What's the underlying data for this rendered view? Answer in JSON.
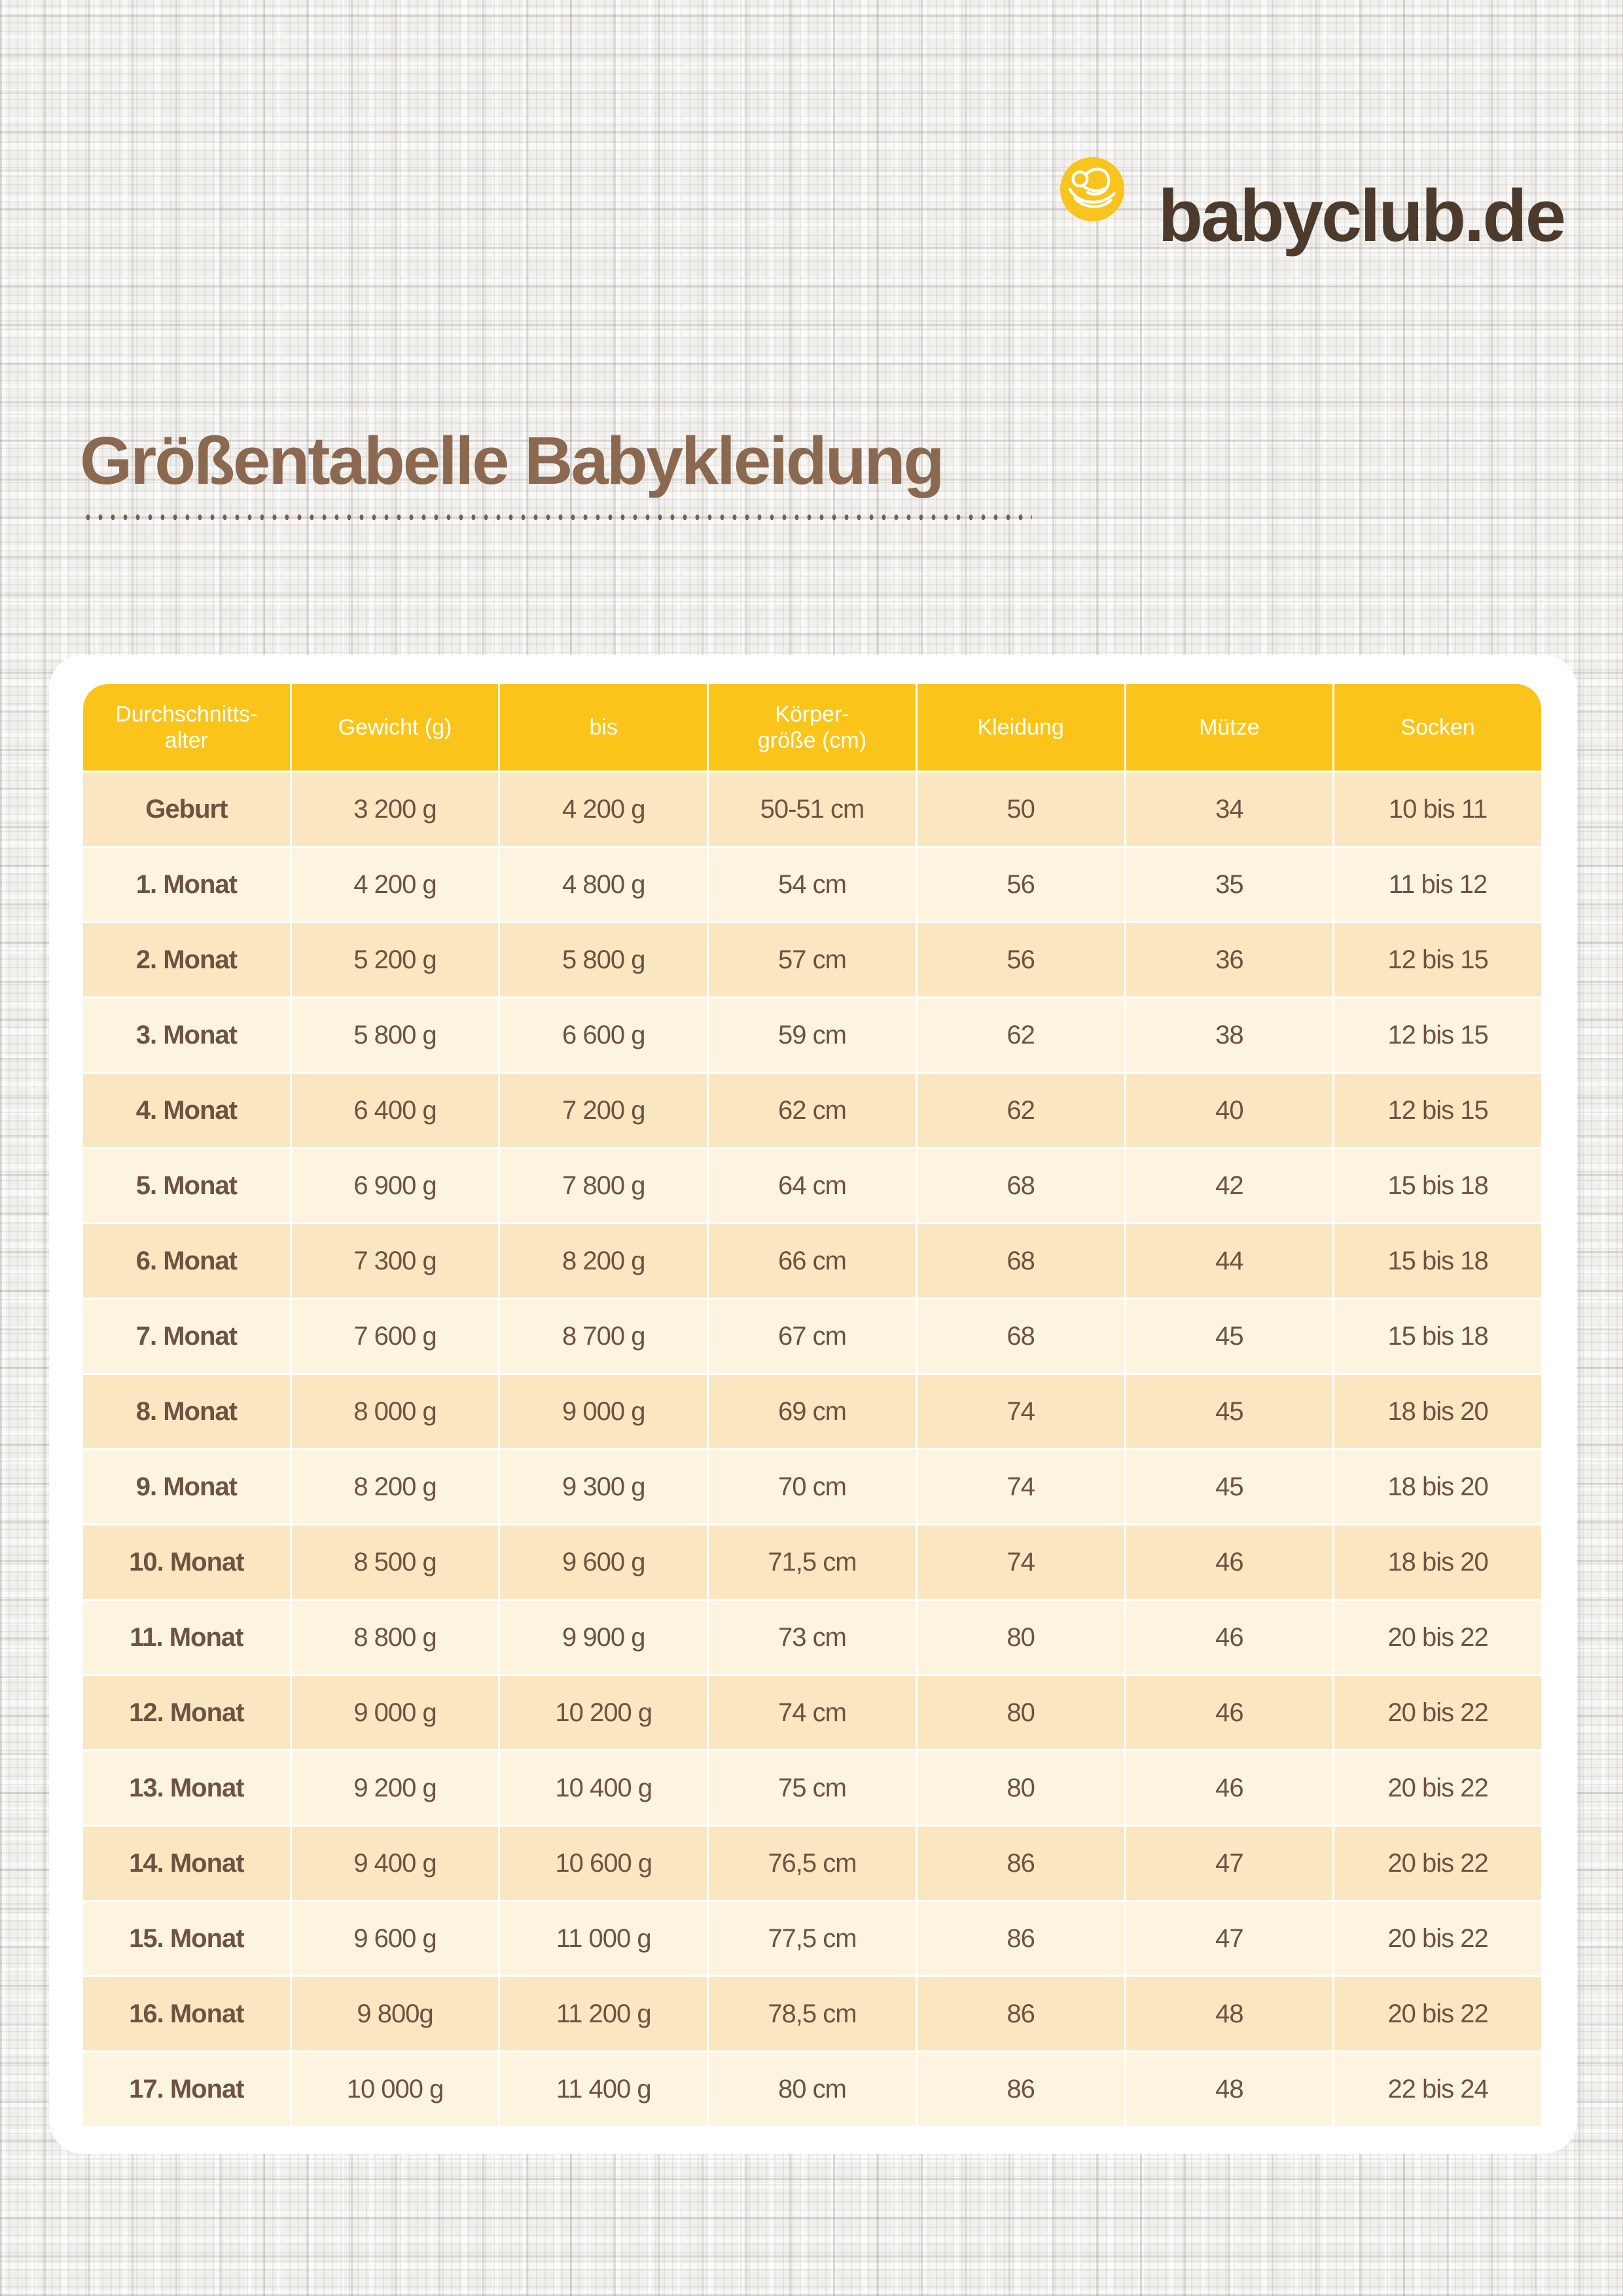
{
  "logo": {
    "text": "babyclub.de"
  },
  "page": {
    "title": "Größentabelle Babykleidung"
  },
  "colors": {
    "header_yellow": "#fbc41a",
    "row_dark": "#fae7c1",
    "row_light": "#fdf4e0",
    "cell_text_brown": "#6e5242",
    "title_brown": "#8a6950",
    "logo_brown": "#4c3a2c",
    "card_white": "#ffffff"
  },
  "table": {
    "headers": [
      "Durchschnitts-\nalter",
      "Gewicht (g)",
      "bis",
      "Körper-\ngröße (cm)",
      "Kleidung",
      "Mütze",
      "Socken"
    ],
    "rows": [
      [
        "Geburt",
        "3 200 g",
        "4 200 g",
        "50-51 cm",
        "50",
        "34",
        "10 bis 11"
      ],
      [
        "1. Monat",
        "4 200 g",
        "4 800 g",
        "54 cm",
        "56",
        "35",
        "11 bis 12"
      ],
      [
        "2. Monat",
        "5 200 g",
        "5 800 g",
        "57 cm",
        "56",
        "36",
        "12 bis 15"
      ],
      [
        "3. Monat",
        "5 800 g",
        "6 600 g",
        "59 cm",
        "62",
        "38",
        "12 bis 15"
      ],
      [
        "4. Monat",
        "6 400 g",
        "7 200 g",
        "62 cm",
        "62",
        "40",
        "12 bis 15"
      ],
      [
        "5. Monat",
        "6 900 g",
        "7 800 g",
        "64 cm",
        "68",
        "42",
        "15 bis 18"
      ],
      [
        "6. Monat",
        "7 300 g",
        "8 200 g",
        "66 cm",
        "68",
        "44",
        "15 bis 18"
      ],
      [
        "7. Monat",
        "7 600 g",
        "8 700 g",
        "67 cm",
        "68",
        "45",
        "15 bis 18"
      ],
      [
        "8. Monat",
        "8 000 g",
        "9 000 g",
        "69 cm",
        "74",
        "45",
        "18 bis 20"
      ],
      [
        "9. Monat",
        "8 200 g",
        "9 300 g",
        "70 cm",
        "74",
        "45",
        "18 bis 20"
      ],
      [
        "10. Monat",
        "8 500 g",
        "9 600 g",
        "71,5 cm",
        "74",
        "46",
        "18 bis 20"
      ],
      [
        "11. Monat",
        "8 800 g",
        "9 900 g",
        "73 cm",
        "80",
        "46",
        "20 bis 22"
      ],
      [
        "12. Monat",
        "9 000 g",
        "10 200 g",
        "74 cm",
        "80",
        "46",
        "20 bis 22"
      ],
      [
        "13. Monat",
        "9 200 g",
        "10 400 g",
        "75 cm",
        "80",
        "46",
        "20 bis 22"
      ],
      [
        "14. Monat",
        "9 400 g",
        "10 600 g",
        "76,5 cm",
        "86",
        "47",
        "20 bis 22"
      ],
      [
        "15. Monat",
        "9 600 g",
        "11 000 g",
        "77,5 cm",
        "86",
        "47",
        "20 bis 22"
      ],
      [
        "16. Monat",
        "9 800g",
        "11 200 g",
        "78,5 cm",
        "86",
        "48",
        "20 bis 22"
      ],
      [
        "17. Monat",
        "10 000 g",
        "11 400 g",
        "80 cm",
        "86",
        "48",
        "22 bis 24"
      ]
    ]
  }
}
